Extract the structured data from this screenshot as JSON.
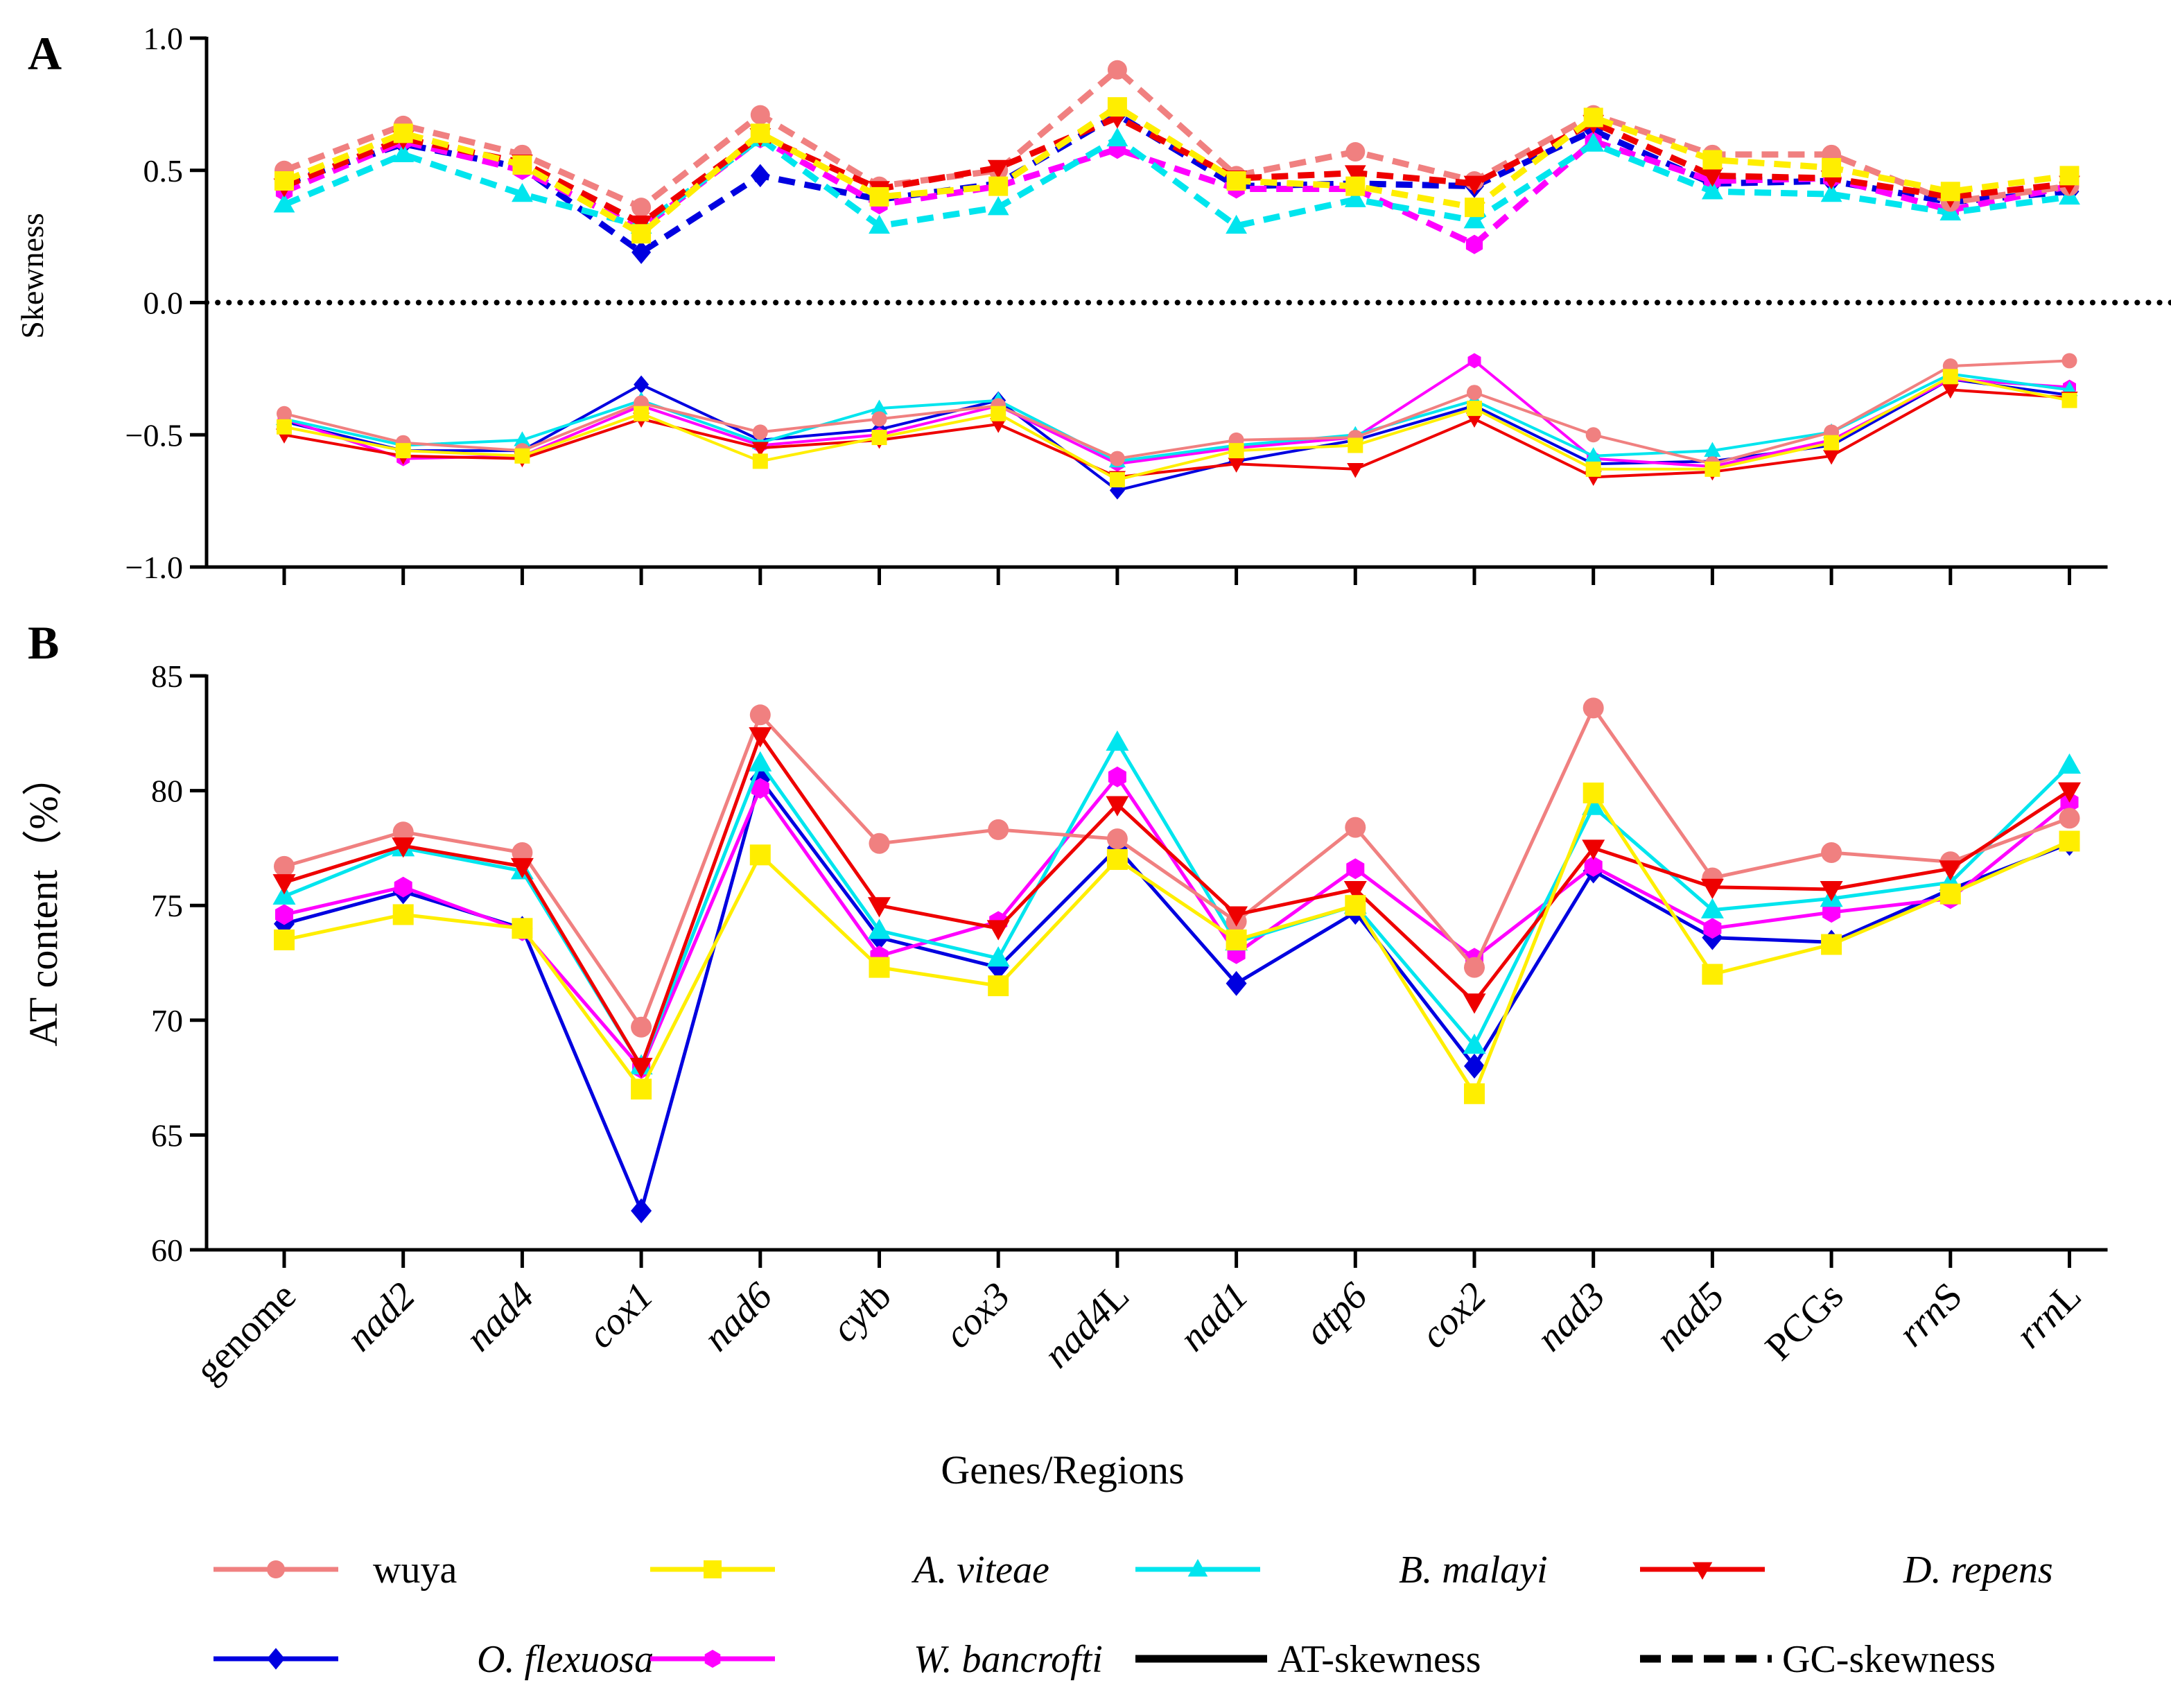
{
  "chart_data": [
    {
      "panel": "A",
      "type": "line",
      "ylabel": "Skewness",
      "ylim": [
        -1.0,
        1.0
      ],
      "yticks": [
        "1.0",
        "0.5",
        "0.0",
        "−0.5",
        "−1.0"
      ],
      "ytick_values": [
        1.0,
        0.5,
        0.0,
        -0.5,
        -1.0
      ],
      "reference_line": 0.0,
      "categories": [
        "genome",
        "nad2",
        "nad4",
        "cox1",
        "nad6",
        "cytb",
        "cox3",
        "nad4L",
        "nad1",
        "atp6",
        "cox2",
        "nad3",
        "nad5",
        "PCGs",
        "rrnS",
        "rrnL"
      ],
      "series": [
        {
          "name": "wuya",
          "measure": "GC-skewness",
          "values": [
            0.5,
            0.67,
            0.56,
            0.36,
            0.71,
            0.44,
            0.5,
            0.88,
            0.48,
            0.57,
            0.46,
            0.71,
            0.56,
            0.56,
            0.38,
            0.44
          ]
        },
        {
          "name": "A. viteae",
          "measure": "GC-skewness",
          "values": [
            0.46,
            0.64,
            0.52,
            0.26,
            0.64,
            0.4,
            0.44,
            0.74,
            0.46,
            0.44,
            0.36,
            0.7,
            0.54,
            0.51,
            0.42,
            0.48
          ]
        },
        {
          "name": "B. malayi",
          "measure": "GC-skewness",
          "values": [
            0.37,
            0.56,
            0.41,
            0.29,
            0.62,
            0.29,
            0.36,
            0.62,
            0.29,
            0.39,
            0.31,
            0.6,
            0.42,
            0.41,
            0.34,
            0.4
          ]
        },
        {
          "name": "D. repens",
          "measure": "GC-skewness",
          "values": [
            0.44,
            0.62,
            0.53,
            0.3,
            0.63,
            0.43,
            0.51,
            0.7,
            0.47,
            0.49,
            0.45,
            0.68,
            0.48,
            0.47,
            0.4,
            0.45
          ]
        },
        {
          "name": "O. flexuosa",
          "measure": "GC-skewness",
          "values": [
            0.45,
            0.6,
            0.51,
            0.19,
            0.48,
            0.39,
            0.45,
            0.71,
            0.44,
            0.45,
            0.44,
            0.65,
            0.45,
            0.46,
            0.38,
            0.42
          ]
        },
        {
          "name": "W. bancrofti",
          "measure": "GC-skewness",
          "values": [
            0.42,
            0.61,
            0.5,
            0.28,
            0.62,
            0.37,
            0.44,
            0.58,
            0.43,
            0.43,
            0.22,
            0.61,
            0.46,
            0.47,
            0.35,
            0.44
          ]
        },
        {
          "name": "wuya",
          "measure": "AT-skewness",
          "values": [
            -0.42,
            -0.53,
            -0.56,
            -0.38,
            -0.49,
            -0.44,
            -0.39,
            -0.59,
            -0.52,
            -0.51,
            -0.34,
            -0.5,
            -0.61,
            -0.49,
            -0.24,
            -0.22
          ]
        },
        {
          "name": "A. viteae",
          "measure": "AT-skewness",
          "values": [
            -0.47,
            -0.56,
            -0.58,
            -0.42,
            -0.6,
            -0.51,
            -0.42,
            -0.67,
            -0.56,
            -0.54,
            -0.4,
            -0.63,
            -0.63,
            -0.53,
            -0.28,
            -0.37
          ]
        },
        {
          "name": "B. malayi",
          "measure": "AT-skewness",
          "values": [
            -0.44,
            -0.54,
            -0.52,
            -0.37,
            -0.53,
            -0.4,
            -0.37,
            -0.6,
            -0.54,
            -0.5,
            -0.37,
            -0.58,
            -0.56,
            -0.49,
            -0.27,
            -0.33
          ]
        },
        {
          "name": "D. repens",
          "measure": "AT-skewness",
          "values": [
            -0.5,
            -0.58,
            -0.59,
            -0.44,
            -0.55,
            -0.52,
            -0.46,
            -0.66,
            -0.61,
            -0.63,
            -0.44,
            -0.66,
            -0.64,
            -0.58,
            -0.33,
            -0.36
          ]
        },
        {
          "name": "O. flexuosa",
          "measure": "AT-skewness",
          "values": [
            -0.45,
            -0.56,
            -0.56,
            -0.31,
            -0.52,
            -0.48,
            -0.37,
            -0.71,
            -0.6,
            -0.52,
            -0.39,
            -0.61,
            -0.6,
            -0.54,
            -0.29,
            -0.35
          ]
        },
        {
          "name": "W. bancrofti",
          "measure": "AT-skewness",
          "values": [
            -0.44,
            -0.59,
            -0.58,
            -0.39,
            -0.54,
            -0.5,
            -0.39,
            -0.61,
            -0.55,
            -0.51,
            -0.22,
            -0.59,
            -0.62,
            -0.52,
            -0.29,
            -0.32
          ]
        }
      ]
    },
    {
      "panel": "B",
      "type": "line",
      "ylabel": "AT content（%）",
      "xlabel": "Genes/Regions",
      "ylim": [
        60,
        85
      ],
      "yticks": [
        "85",
        "80",
        "75",
        "70",
        "65",
        "60"
      ],
      "ytick_values": [
        85,
        80,
        75,
        70,
        65,
        60
      ],
      "categories": [
        "genome",
        "nad2",
        "nad4",
        "cox1",
        "nad6",
        "cytb",
        "cox3",
        "nad4L",
        "nad1",
        "atp6",
        "cox2",
        "nad3",
        "nad5",
        "PCGs",
        "rrnS",
        "rrnL"
      ],
      "series": [
        {
          "name": "wuya",
          "values": [
            76.7,
            78.2,
            77.3,
            69.7,
            83.3,
            77.7,
            78.3,
            77.9,
            74.3,
            78.4,
            72.3,
            83.6,
            76.2,
            77.3,
            76.9,
            78.8
          ]
        },
        {
          "name": "A. viteae",
          "values": [
            73.5,
            74.6,
            74.0,
            67.0,
            77.2,
            72.3,
            71.5,
            77.0,
            73.5,
            75.0,
            66.8,
            79.9,
            72.0,
            73.3,
            75.5,
            77.8
          ]
        },
        {
          "name": "B. malayi",
          "values": [
            75.4,
            77.5,
            76.5,
            68.0,
            81.2,
            73.9,
            72.7,
            82.1,
            73.4,
            75.0,
            68.9,
            79.3,
            74.8,
            75.3,
            76.0,
            81.1
          ]
        },
        {
          "name": "D. repens",
          "values": [
            76.0,
            77.6,
            76.7,
            68.0,
            82.4,
            75.0,
            74.0,
            79.4,
            74.6,
            75.7,
            70.8,
            77.5,
            75.8,
            75.7,
            76.6,
            80.0
          ]
        },
        {
          "name": "O. flexuosa",
          "values": [
            74.2,
            75.6,
            74.0,
            61.7,
            80.5,
            73.6,
            72.3,
            77.5,
            71.6,
            74.7,
            68.0,
            76.5,
            73.6,
            73.4,
            75.7,
            77.7
          ]
        },
        {
          "name": "W. bancrofti",
          "values": [
            74.6,
            75.8,
            73.9,
            67.9,
            80.1,
            72.8,
            74.3,
            80.6,
            72.9,
            76.6,
            72.7,
            76.7,
            74.0,
            74.7,
            75.3,
            79.5
          ]
        }
      ]
    }
  ],
  "category_styles": [
    "normal",
    "italic",
    "italic",
    "italic",
    "italic",
    "italic-b",
    "italic",
    "italic-L",
    "italic",
    "italic",
    "italic",
    "italic",
    "italic",
    "normal",
    "italic-S",
    "italic-L"
  ],
  "species_styles": [
    {
      "name": "wuya",
      "color": "#f08080",
      "marker": "circle",
      "italic": false
    },
    {
      "name": "A. viteae",
      "color": "#ffee00",
      "marker": "square",
      "italic": true
    },
    {
      "name": "B. malayi",
      "color": "#00e5ee",
      "marker": "triangle-up",
      "italic": true
    },
    {
      "name": "D. repens",
      "color": "#ee0000",
      "marker": "triangle-down",
      "italic": true
    },
    {
      "name": "O. flexuosa",
      "color": "#0000e0",
      "marker": "diamond",
      "italic": true
    },
    {
      "name": "W. bancrofti",
      "color": "#ff00ff",
      "marker": "hexagon",
      "italic": true
    }
  ],
  "legend": {
    "items": [
      "wuya",
      "A. viteae",
      "B. malayi",
      "D. repens",
      "O. flexuosa",
      "W. bancrofti"
    ],
    "at_label": "AT-skewness",
    "gc_label": "GC-skewness"
  }
}
